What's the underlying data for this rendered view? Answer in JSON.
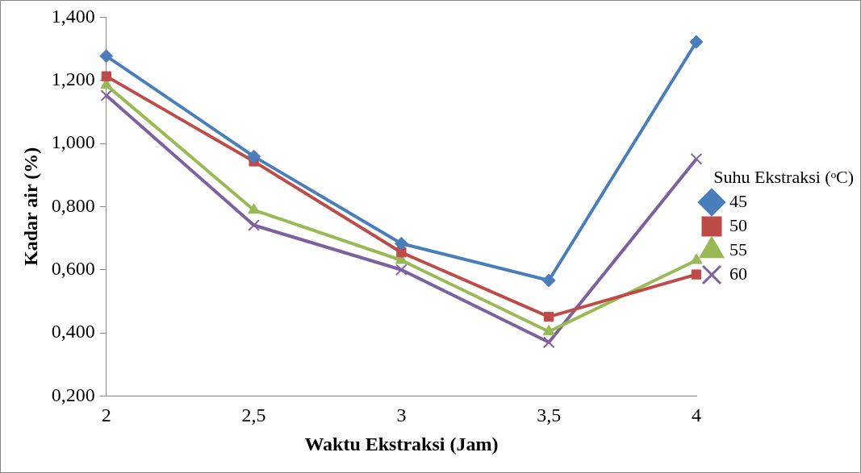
{
  "chart_data": {
    "type": "line",
    "xlabel": "Waktu Ekstraksi (Jam)",
    "ylabel": "Kadar air (%)",
    "legend_title": "Suhu Ekstraksi (ᵒC)",
    "legend": "right",
    "grid": false,
    "categories": [
      "2",
      "2,5",
      "3",
      "3,5",
      "4"
    ],
    "ylim": [
      0.2,
      1.4
    ],
    "yticks": [
      {
        "value": 0.2,
        "label": "0,200"
      },
      {
        "value": 0.4,
        "label": "0,400"
      },
      {
        "value": 0.6,
        "label": "0,600"
      },
      {
        "value": 0.8,
        "label": "0,800"
      },
      {
        "value": 1.0,
        "label": "1,000"
      },
      {
        "value": 1.2,
        "label": "1,200"
      },
      {
        "value": 1.4,
        "label": "1,400"
      }
    ],
    "series": [
      {
        "name": "45",
        "color": "#4a7ebb",
        "marker": "diamond",
        "values": [
          1.277,
          0.959,
          0.683,
          0.566,
          1.322
        ]
      },
      {
        "name": "50",
        "color": "#be4b48",
        "marker": "square",
        "values": [
          1.213,
          0.943,
          0.655,
          0.451,
          0.585
        ]
      },
      {
        "name": "55",
        "color": "#98b954",
        "marker": "triangle",
        "values": [
          1.185,
          0.789,
          0.63,
          0.404,
          0.63
        ]
      },
      {
        "name": "60",
        "color": "#7d60a0",
        "marker": "cross",
        "values": [
          1.152,
          0.741,
          0.6,
          0.37,
          0.951
        ]
      }
    ]
  }
}
